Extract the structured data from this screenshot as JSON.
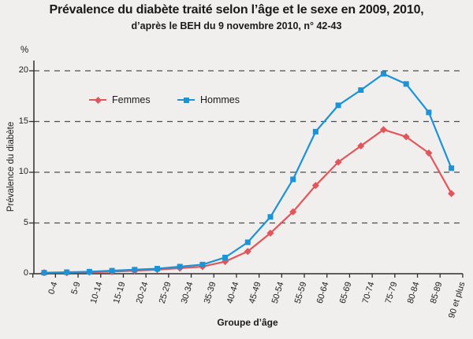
{
  "header": {
    "title": "Prévalence du diabète traité selon l’âge et le sexe en 2009, 2010,",
    "subtitle": "d’après le BEH du 9 novembre 2010, n° 42-43"
  },
  "chart_data": {
    "type": "line",
    "categories": [
      "0-4",
      "5-9",
      "10-14",
      "15-19",
      "20-24",
      "25-29",
      "30-34",
      "35-39",
      "40-44",
      "45-49",
      "50-54",
      "55-59",
      "60-64",
      "65-69",
      "70-74",
      "75-79",
      "80-84",
      "85-89",
      "90 et plus"
    ],
    "series": [
      {
        "name": "Femmes",
        "color": "#e2555a",
        "marker": "diamond",
        "values": [
          0.1,
          0.1,
          0.15,
          0.2,
          0.3,
          0.4,
          0.55,
          0.7,
          1.2,
          2.2,
          4.0,
          6.1,
          8.7,
          11.0,
          12.6,
          14.2,
          13.5,
          11.9,
          7.9
        ]
      },
      {
        "name": "Hommes",
        "color": "#1a93d7",
        "marker": "square",
        "values": [
          0.1,
          0.15,
          0.2,
          0.3,
          0.4,
          0.5,
          0.7,
          0.9,
          1.6,
          3.1,
          5.6,
          9.3,
          14.0,
          16.6,
          18.1,
          19.7,
          18.7,
          15.9,
          10.4
        ]
      }
    ],
    "title": "Prévalence du diabète traité selon l’âge et le sexe en 2009, 2010",
    "xlabel": "Groupe d’âge",
    "ylabel": "Prévalence du diabète",
    "unit_label": "%",
    "yticks": [
      0,
      5,
      10,
      15,
      20
    ],
    "ylim": [
      0,
      20
    ],
    "grid": "horizontal dashed",
    "legend_position": "inside top-left"
  },
  "style": {
    "background": "#f0efed",
    "axis_color": "#2e2e2e",
    "grid_color": "#4d4d4d",
    "text_color": "#1a1a1a"
  }
}
